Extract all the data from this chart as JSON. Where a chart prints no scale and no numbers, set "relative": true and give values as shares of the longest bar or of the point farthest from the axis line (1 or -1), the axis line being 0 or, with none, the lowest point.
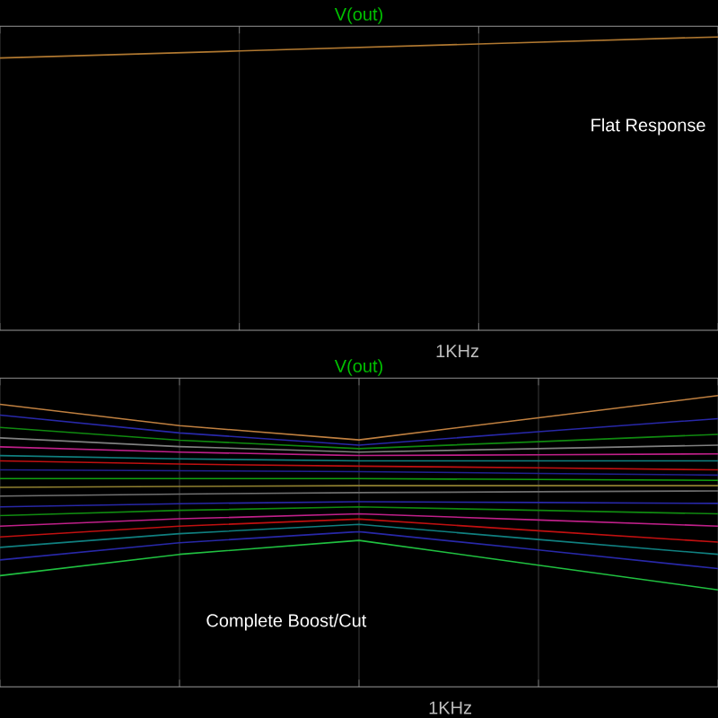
{
  "chart_data": [
    {
      "type": "line",
      "title": "V(out)",
      "relative": true,
      "grid": "x",
      "categories": [
        null,
        null,
        null,
        null
      ],
      "annotations": [
        "1KHz",
        "Flat Response"
      ],
      "series": [
        {
          "color": "#b07830",
          "values": [
            0.928,
            0.952,
            0.976,
            1.0
          ]
        }
      ]
    },
    {
      "type": "line",
      "title": "V(out)",
      "relative": true,
      "grid": "x",
      "categories": [
        null,
        null,
        null,
        null,
        null
      ],
      "annotations": [
        "1KHz",
        "Complete Boost/Cut"
      ],
      "series": [
        {
          "color": "#c08040",
          "values": [
            0.97,
            0.897,
            0.848,
            0.924,
            1.0
          ]
        },
        {
          "color": "#2828a8",
          "values": [
            0.933,
            0.872,
            0.83,
            0.876,
            0.921
          ]
        },
        {
          "color": "#108a10",
          "values": [
            0.891,
            0.847,
            0.818,
            0.842,
            0.867
          ]
        },
        {
          "color": "#808080",
          "values": [
            0.855,
            0.825,
            0.806,
            0.818,
            0.83
          ]
        },
        {
          "color": "#c0208a",
          "values": [
            0.824,
            0.806,
            0.794,
            0.797,
            0.8
          ]
        },
        {
          "color": "#108080",
          "values": [
            0.794,
            0.783,
            0.776,
            0.776,
            0.776
          ]
        },
        {
          "color": "#c01010",
          "values": [
            0.776,
            0.765,
            0.758,
            0.752,
            0.745
          ]
        },
        {
          "color": "#202090",
          "values": [
            0.745,
            0.742,
            0.739,
            0.733,
            0.727
          ]
        },
        {
          "color": "#10a010",
          "values": [
            0.715,
            0.715,
            0.715,
            0.712,
            0.709
          ]
        },
        {
          "color": "#908030",
          "values": [
            0.685,
            0.688,
            0.691,
            0.691,
            0.691
          ]
        },
        {
          "color": "#707070",
          "values": [
            0.655,
            0.662,
            0.667,
            0.67,
            0.673
          ]
        },
        {
          "color": "#2828a8",
          "values": [
            0.618,
            0.629,
            0.636,
            0.633,
            0.63
          ]
        },
        {
          "color": "#108a10",
          "values": [
            0.588,
            0.606,
            0.618,
            0.606,
            0.594
          ]
        },
        {
          "color": "#c0208a",
          "values": [
            0.552,
            0.577,
            0.594,
            0.573,
            0.552
          ]
        },
        {
          "color": "#c01010",
          "values": [
            0.515,
            0.552,
            0.576,
            0.536,
            0.497
          ]
        },
        {
          "color": "#108080",
          "values": [
            0.479,
            0.526,
            0.558,
            0.506,
            0.455
          ]
        },
        {
          "color": "#2828a8",
          "values": [
            0.436,
            0.495,
            0.533,
            0.47,
            0.406
          ]
        },
        {
          "color": "#20c040",
          "values": [
            0.382,
            0.455,
            0.503,
            0.418,
            0.333
          ]
        }
      ]
    }
  ]
}
